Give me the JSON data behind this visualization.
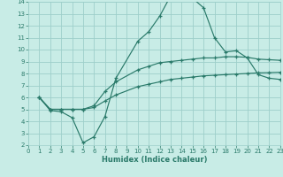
{
  "xlabel": "Humidex (Indice chaleur)",
  "bg_color": "#c8ece6",
  "grid_color": "#9dcfca",
  "line_color": "#2a7a6a",
  "xlim": [
    0,
    23
  ],
  "ylim": [
    2,
    14
  ],
  "xticks": [
    0,
    1,
    2,
    3,
    4,
    5,
    6,
    7,
    8,
    9,
    10,
    11,
    12,
    13,
    14,
    15,
    16,
    17,
    18,
    19,
    20,
    21,
    22,
    23
  ],
  "yticks": [
    2,
    3,
    4,
    5,
    6,
    7,
    8,
    9,
    10,
    11,
    12,
    13,
    14
  ],
  "curve1_x": [
    1,
    2,
    3,
    4,
    5,
    6,
    7,
    8,
    10,
    11,
    12,
    13,
    14,
    15,
    16,
    17,
    18,
    19,
    20,
    21,
    22,
    23
  ],
  "curve1_y": [
    6.0,
    4.9,
    4.8,
    4.3,
    2.2,
    2.7,
    4.4,
    7.6,
    10.7,
    11.5,
    12.8,
    14.5,
    14.5,
    14.3,
    13.5,
    11.0,
    9.8,
    9.9,
    9.3,
    7.9,
    7.6,
    7.5
  ],
  "curve2_x": [
    1,
    2,
    3,
    4,
    5,
    6,
    7,
    8,
    10,
    11,
    12,
    13,
    14,
    15,
    16,
    17,
    18,
    19,
    20,
    21,
    22,
    23
  ],
  "curve2_y": [
    6.0,
    5.0,
    5.0,
    5.0,
    5.0,
    5.3,
    6.5,
    7.3,
    8.3,
    8.6,
    8.9,
    9.0,
    9.1,
    9.2,
    9.3,
    9.3,
    9.4,
    9.4,
    9.35,
    9.2,
    9.15,
    9.1
  ],
  "curve3_x": [
    1,
    2,
    3,
    4,
    5,
    6,
    7,
    8,
    10,
    11,
    12,
    13,
    14,
    15,
    16,
    17,
    18,
    19,
    20,
    21,
    22,
    23
  ],
  "curve3_y": [
    6.0,
    5.0,
    5.0,
    5.0,
    5.0,
    5.15,
    5.7,
    6.2,
    6.9,
    7.1,
    7.3,
    7.5,
    7.6,
    7.7,
    7.8,
    7.85,
    7.9,
    7.95,
    8.0,
    8.05,
    8.07,
    8.1
  ]
}
